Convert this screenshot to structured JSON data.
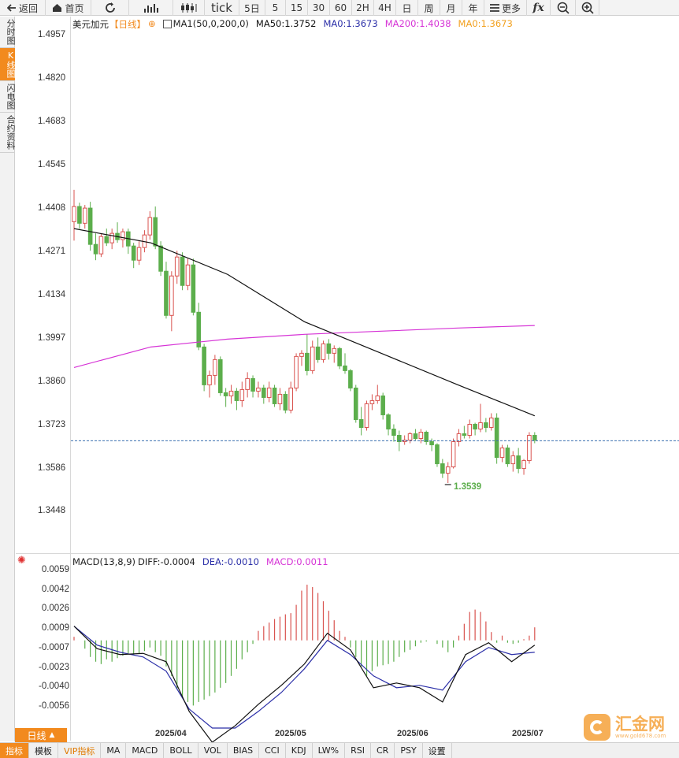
{
  "toolbar": {
    "items": [
      {
        "label": "返回",
        "icon": "back-arrow-icon"
      },
      {
        "label": "首页",
        "icon": "home-icon"
      },
      {
        "label": "",
        "icon": "refresh-icon"
      },
      {
        "label": "",
        "icon": "bar-chart-icon"
      },
      {
        "label": "",
        "icon": "candlestick-icon"
      },
      {
        "label": "tick",
        "icon": ""
      },
      {
        "label": "5日",
        "icon": ""
      },
      {
        "label": "5",
        "icon": ""
      },
      {
        "label": "15",
        "icon": ""
      },
      {
        "label": "30",
        "icon": ""
      },
      {
        "label": "60",
        "icon": ""
      },
      {
        "label": "2H",
        "icon": ""
      },
      {
        "label": "4H",
        "icon": ""
      },
      {
        "label": "日",
        "icon": ""
      },
      {
        "label": "周",
        "icon": ""
      },
      {
        "label": "月",
        "icon": ""
      },
      {
        "label": "年",
        "icon": ""
      },
      {
        "label": "更多",
        "icon": "menu-icon"
      },
      {
        "label": "",
        "icon": "function-fx-icon"
      },
      {
        "label": "",
        "icon": "zoom-out-icon"
      },
      {
        "label": "",
        "icon": "zoom-in-icon"
      }
    ]
  },
  "sidebar": {
    "items": [
      {
        "label": "分时图",
        "active": false
      },
      {
        "label": "K线图",
        "active": true
      },
      {
        "label": "闪电图",
        "active": false
      },
      {
        "label": "合约资料",
        "active": false
      }
    ]
  },
  "legend": {
    "symbol": "美元加元",
    "period": "【日线】",
    "ma_params": "MA1(50,0,200,0)",
    "ma50": "MA50:1.3752",
    "ma0a": "MA0:1.3673",
    "ma200": "MA200:1.4038",
    "ma0b": "MA0:1.3673"
  },
  "macd_legend": {
    "name": "MACD(13,8,9)",
    "diff": "DIFF:-0.0004",
    "dea": "DEA:-0.0010",
    "macd": "MACD:0.0011"
  },
  "colors": {
    "up": "#d9534f",
    "down": "#5cae4c",
    "ma50": "#111111",
    "ma200": "#d633d6",
    "dea": "#2b2fa8",
    "accent": "#f28a1e"
  },
  "price_axis": [
    "1.4957",
    "1.4820",
    "1.4683",
    "1.4545",
    "1.4408",
    "1.4271",
    "1.4134",
    "1.3997",
    "1.3860",
    "1.3723",
    "1.3586",
    "1.3448"
  ],
  "macd_axis": [
    "0.0059",
    "0.0042",
    "0.0026",
    "0.0009",
    "-0.0007",
    "-0.0023",
    "-0.0040",
    "-0.0056"
  ],
  "x_axis": [
    "2025/04",
    "2025/05",
    "2025/06",
    "2025/07"
  ],
  "low_marker": "1.3539",
  "current_price": 1.3673,
  "bottom_tabs": [
    "指标",
    "模板",
    "VIP指标",
    "MA",
    "MACD",
    "BOLL",
    "VOL",
    "BIAS",
    "CCI",
    "KDJ",
    "LW%",
    "RSI",
    "CR",
    "PSY",
    "设置"
  ],
  "period_tab": "日线",
  "watermark": {
    "brand": "汇金网",
    "url": "www.gold678.com"
  },
  "chart_data": {
    "type": "candlestick",
    "ylim": [
      1.3448,
      1.4957
    ],
    "candles": [
      [
        1.4367,
        1.4468,
        1.4307,
        1.4415
      ],
      [
        1.4415,
        1.4427,
        1.4345,
        1.4362
      ],
      [
        1.4362,
        1.442,
        1.4345,
        1.441
      ],
      [
        1.441,
        1.443,
        1.4275,
        1.4295
      ],
      [
        1.4295,
        1.433,
        1.4245,
        1.4265
      ],
      [
        1.4265,
        1.433,
        1.4255,
        1.432
      ],
      [
        1.432,
        1.4345,
        1.429,
        1.43
      ],
      [
        1.43,
        1.4345,
        1.428,
        1.433
      ],
      [
        1.433,
        1.4365,
        1.43,
        1.431
      ],
      [
        1.431,
        1.4345,
        1.4285,
        1.4335
      ],
      [
        1.4335,
        1.4345,
        1.4265,
        1.429
      ],
      [
        1.429,
        1.43,
        1.422,
        1.4245
      ],
      [
        1.4245,
        1.4305,
        1.423,
        1.4285
      ],
      [
        1.4285,
        1.434,
        1.427,
        1.4325
      ],
      [
        1.4325,
        1.44,
        1.431,
        1.438
      ],
      [
        1.438,
        1.4415,
        1.428,
        1.429
      ],
      [
        1.429,
        1.4305,
        1.4195,
        1.421
      ],
      [
        1.421,
        1.424,
        1.406,
        1.407
      ],
      [
        1.407,
        1.421,
        1.402,
        1.4195
      ],
      [
        1.4195,
        1.4275,
        1.417,
        1.4255
      ],
      [
        1.4255,
        1.427,
        1.415,
        1.4165
      ],
      [
        1.4165,
        1.425,
        1.415,
        1.423
      ],
      [
        1.423,
        1.425,
        1.407,
        1.408
      ],
      [
        1.408,
        1.411,
        1.396,
        1.397
      ],
      [
        1.397,
        1.398,
        1.383,
        1.385
      ],
      [
        1.385,
        1.3895,
        1.381,
        1.388
      ],
      [
        1.388,
        1.3945,
        1.385,
        1.393
      ],
      [
        1.393,
        1.394,
        1.3815,
        1.3825
      ],
      [
        1.3825,
        1.384,
        1.378,
        1.3815
      ],
      [
        1.3815,
        1.385,
        1.379,
        1.383
      ],
      [
        1.383,
        1.384,
        1.377,
        1.38
      ],
      [
        1.38,
        1.386,
        1.378,
        1.3835
      ],
      [
        1.3835,
        1.389,
        1.381,
        1.387
      ],
      [
        1.387,
        1.388,
        1.381,
        1.383
      ],
      [
        1.383,
        1.386,
        1.381,
        1.384
      ],
      [
        1.384,
        1.385,
        1.379,
        1.381
      ],
      [
        1.381,
        1.386,
        1.3795,
        1.384
      ],
      [
        1.384,
        1.385,
        1.378,
        1.379
      ],
      [
        1.379,
        1.384,
        1.377,
        1.382
      ],
      [
        1.382,
        1.383,
        1.376,
        1.377
      ],
      [
        1.377,
        1.386,
        1.376,
        1.384
      ],
      [
        1.384,
        1.395,
        1.383,
        1.394
      ],
      [
        1.394,
        1.396,
        1.391,
        1.395
      ],
      [
        1.395,
        1.401,
        1.388,
        1.3895
      ],
      [
        1.3895,
        1.399,
        1.3885,
        1.397
      ],
      [
        1.397,
        1.4,
        1.392,
        1.393
      ],
      [
        1.393,
        1.399,
        1.392,
        1.398
      ],
      [
        1.398,
        1.3995,
        1.393,
        1.395
      ],
      [
        1.395,
        1.3975,
        1.392,
        1.3965
      ],
      [
        1.3965,
        1.397,
        1.39,
        1.391
      ],
      [
        1.391,
        1.395,
        1.3885,
        1.3895
      ],
      [
        1.3895,
        1.39,
        1.383,
        1.384
      ],
      [
        1.384,
        1.385,
        1.373,
        1.374
      ],
      [
        1.374,
        1.378,
        1.369,
        1.3715
      ],
      [
        1.3715,
        1.38,
        1.3705,
        1.379
      ],
      [
        1.379,
        1.382,
        1.377,
        1.38
      ],
      [
        1.38,
        1.385,
        1.379,
        1.3815
      ],
      [
        1.3815,
        1.3825,
        1.374,
        1.3755
      ],
      [
        1.3755,
        1.376,
        1.369,
        1.371
      ],
      [
        1.371,
        1.3725,
        1.367,
        1.369
      ],
      [
        1.369,
        1.3705,
        1.364,
        1.367
      ],
      [
        1.367,
        1.369,
        1.366,
        1.3675
      ],
      [
        1.3675,
        1.37,
        1.3665,
        1.3695
      ],
      [
        1.3695,
        1.371,
        1.3675,
        1.368
      ],
      [
        1.368,
        1.371,
        1.3665,
        1.37
      ],
      [
        1.37,
        1.3705,
        1.366,
        1.367
      ],
      [
        1.367,
        1.368,
        1.364,
        1.366
      ],
      [
        1.366,
        1.3665,
        1.359,
        1.36
      ],
      [
        1.36,
        1.3615,
        1.3555,
        1.357
      ],
      [
        1.357,
        1.3605,
        1.3539,
        1.359
      ],
      [
        1.359,
        1.368,
        1.3585,
        1.367
      ],
      [
        1.367,
        1.371,
        1.3655,
        1.3695
      ],
      [
        1.3695,
        1.372,
        1.368,
        1.369
      ],
      [
        1.369,
        1.374,
        1.368,
        1.3725
      ],
      [
        1.3725,
        1.373,
        1.369,
        1.371
      ],
      [
        1.371,
        1.379,
        1.37,
        1.373
      ],
      [
        1.373,
        1.3745,
        1.37,
        1.3715
      ],
      [
        1.3715,
        1.376,
        1.3705,
        1.3745
      ],
      [
        1.3745,
        1.376,
        1.36,
        1.362
      ],
      [
        1.362,
        1.366,
        1.3605,
        1.365
      ],
      [
        1.365,
        1.366,
        1.359,
        1.36
      ],
      [
        1.36,
        1.364,
        1.3575,
        1.3625
      ],
      [
        1.3625,
        1.365,
        1.357,
        1.3585
      ],
      [
        1.3585,
        1.3615,
        1.3565,
        1.361
      ],
      [
        1.361,
        1.37,
        1.36,
        1.369
      ],
      [
        1.369,
        1.37,
        1.3665,
        1.3675
      ]
    ],
    "ma50": [
      1.4345,
      1.43,
      1.42,
      1.405,
      1.395,
      1.385,
      1.3752
    ],
    "ma200": [
      1.3905,
      1.397,
      1.3995,
      1.401,
      1.402,
      1.403,
      1.4038
    ],
    "macd_hist": [
      0.0003,
      0.0,
      -0.0007,
      -0.0014,
      -0.0018,
      -0.002,
      -0.0016,
      -0.0018,
      -0.0015,
      -0.0013,
      -0.0011,
      -0.0012,
      -0.0011,
      -0.0009,
      -0.0006,
      -0.001,
      -0.0013,
      -0.0022,
      -0.003,
      -0.0041,
      -0.0048,
      -0.0052,
      -0.0055,
      -0.0052,
      -0.005,
      -0.0047,
      -0.0044,
      -0.004,
      -0.0036,
      -0.003,
      -0.0024,
      -0.0016,
      -0.001,
      -0.0003,
      0.0008,
      0.0012,
      0.0015,
      0.0018,
      0.002,
      0.0022,
      0.0023,
      0.003,
      0.0042,
      0.0047,
      0.0045,
      0.004,
      0.0033,
      0.0025,
      0.0017,
      0.0008,
      0.0003,
      -0.0006,
      -0.0014,
      -0.0022,
      -0.003,
      -0.0026,
      -0.0022,
      -0.0021,
      -0.002,
      -0.0018,
      -0.0014,
      -0.001,
      -0.0008,
      -0.0005,
      -0.0002,
      -0.0001,
      0.0,
      -0.0003,
      -0.0006,
      -0.001,
      -0.0006,
      0.0004,
      0.0014,
      0.0024,
      0.0026,
      0.0024,
      0.0016,
      0.0007,
      -0.0002,
      0.0004,
      -0.0002,
      -0.0003,
      -0.0002,
      0.0001,
      0.0004,
      0.0011
    ],
    "macd_diff": [
      0.0012,
      -0.0007,
      -0.0012,
      -0.0011,
      -0.0018,
      -0.006,
      -0.0086,
      -0.0072,
      -0.0054,
      -0.0038,
      -0.002,
      0.0006,
      -0.0008,
      -0.004,
      -0.0036,
      -0.004,
      -0.0052,
      -0.0012,
      -0.0002,
      -0.0018,
      -0.0004
    ],
    "macd_dea": [
      0.0012,
      -0.0004,
      -0.001,
      -0.0014,
      -0.0026,
      -0.0058,
      -0.0074,
      -0.0074,
      -0.006,
      -0.0044,
      -0.0024,
      0.0,
      -0.0012,
      -0.003,
      -0.004,
      -0.0038,
      -0.0042,
      -0.0018,
      -0.0006,
      -0.0012,
      -0.001
    ]
  }
}
